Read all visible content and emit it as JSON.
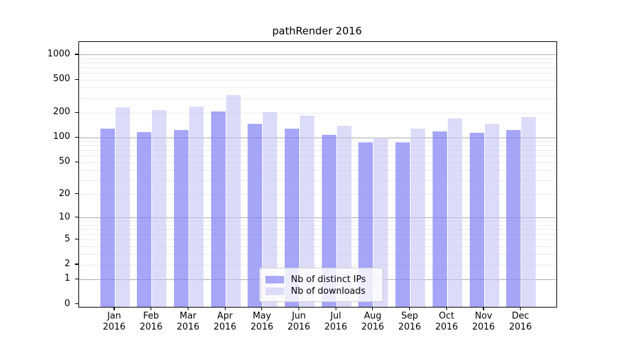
{
  "title": "pathRender 2016",
  "colors": {
    "ips_bar": "rgba(132,132,247,0.72)",
    "downloads_bar": "rgba(196,196,245,0.60)",
    "ips_solid": "#a9a9f8",
    "downloads_solid": "#dcdcfa",
    "grid_major": "#ababab",
    "grid_minor": "#ebebeb"
  },
  "legend": {
    "items": [
      {
        "label": "Nb of distinct IPs",
        "series_key": "ips"
      },
      {
        "label": "Nb of downloads",
        "series_key": "downloads"
      }
    ]
  },
  "chart_data": {
    "type": "bar",
    "title": "pathRender 2016",
    "xlabel": "",
    "ylabel": "",
    "y_scale": "log10(value+1), zero shown on axis",
    "grid": "on, minor and major horizontal lines",
    "legend_position": "lower center",
    "categories": [
      "Jan 2016",
      "Feb 2016",
      "Mar 2016",
      "Apr 2016",
      "May 2016",
      "Jun 2016",
      "Jul 2016",
      "Aug 2016",
      "Sep 2016",
      "Oct 2016",
      "Nov 2016",
      "Dec 2016"
    ],
    "series": [
      {
        "name": "Nb of distinct IPs",
        "values": [
          130,
          118,
          124,
          207,
          149,
          129,
          108,
          88,
          88,
          119,
          116,
          124
        ]
      },
      {
        "name": "Nb of downloads",
        "values": [
          234,
          218,
          237,
          328,
          203,
          187,
          139,
          101,
          130,
          174,
          149,
          180
        ]
      }
    ],
    "yticks": [
      {
        "value": 0,
        "label": "0"
      },
      {
        "value": 1,
        "label": "1"
      },
      {
        "value": 2,
        "label": "2"
      },
      {
        "value": 5,
        "label": "5"
      },
      {
        "value": 10,
        "label": "10"
      },
      {
        "value": 20,
        "label": "20"
      },
      {
        "value": 50,
        "label": "50"
      },
      {
        "value": 100,
        "label": "100"
      },
      {
        "value": 200,
        "label": "200"
      },
      {
        "value": 500,
        "label": "500"
      },
      {
        "value": 1000,
        "label": "1000"
      }
    ],
    "major_gridlines": [
      1,
      10,
      100,
      1000
    ],
    "minor_gridlines": [
      2,
      3,
      4,
      5,
      6,
      7,
      8,
      9,
      20,
      30,
      40,
      50,
      60,
      70,
      80,
      90,
      200,
      300,
      400,
      500,
      600,
      700,
      800,
      900
    ],
    "log_top": 3.157,
    "log_bottom": -0.0273
  }
}
